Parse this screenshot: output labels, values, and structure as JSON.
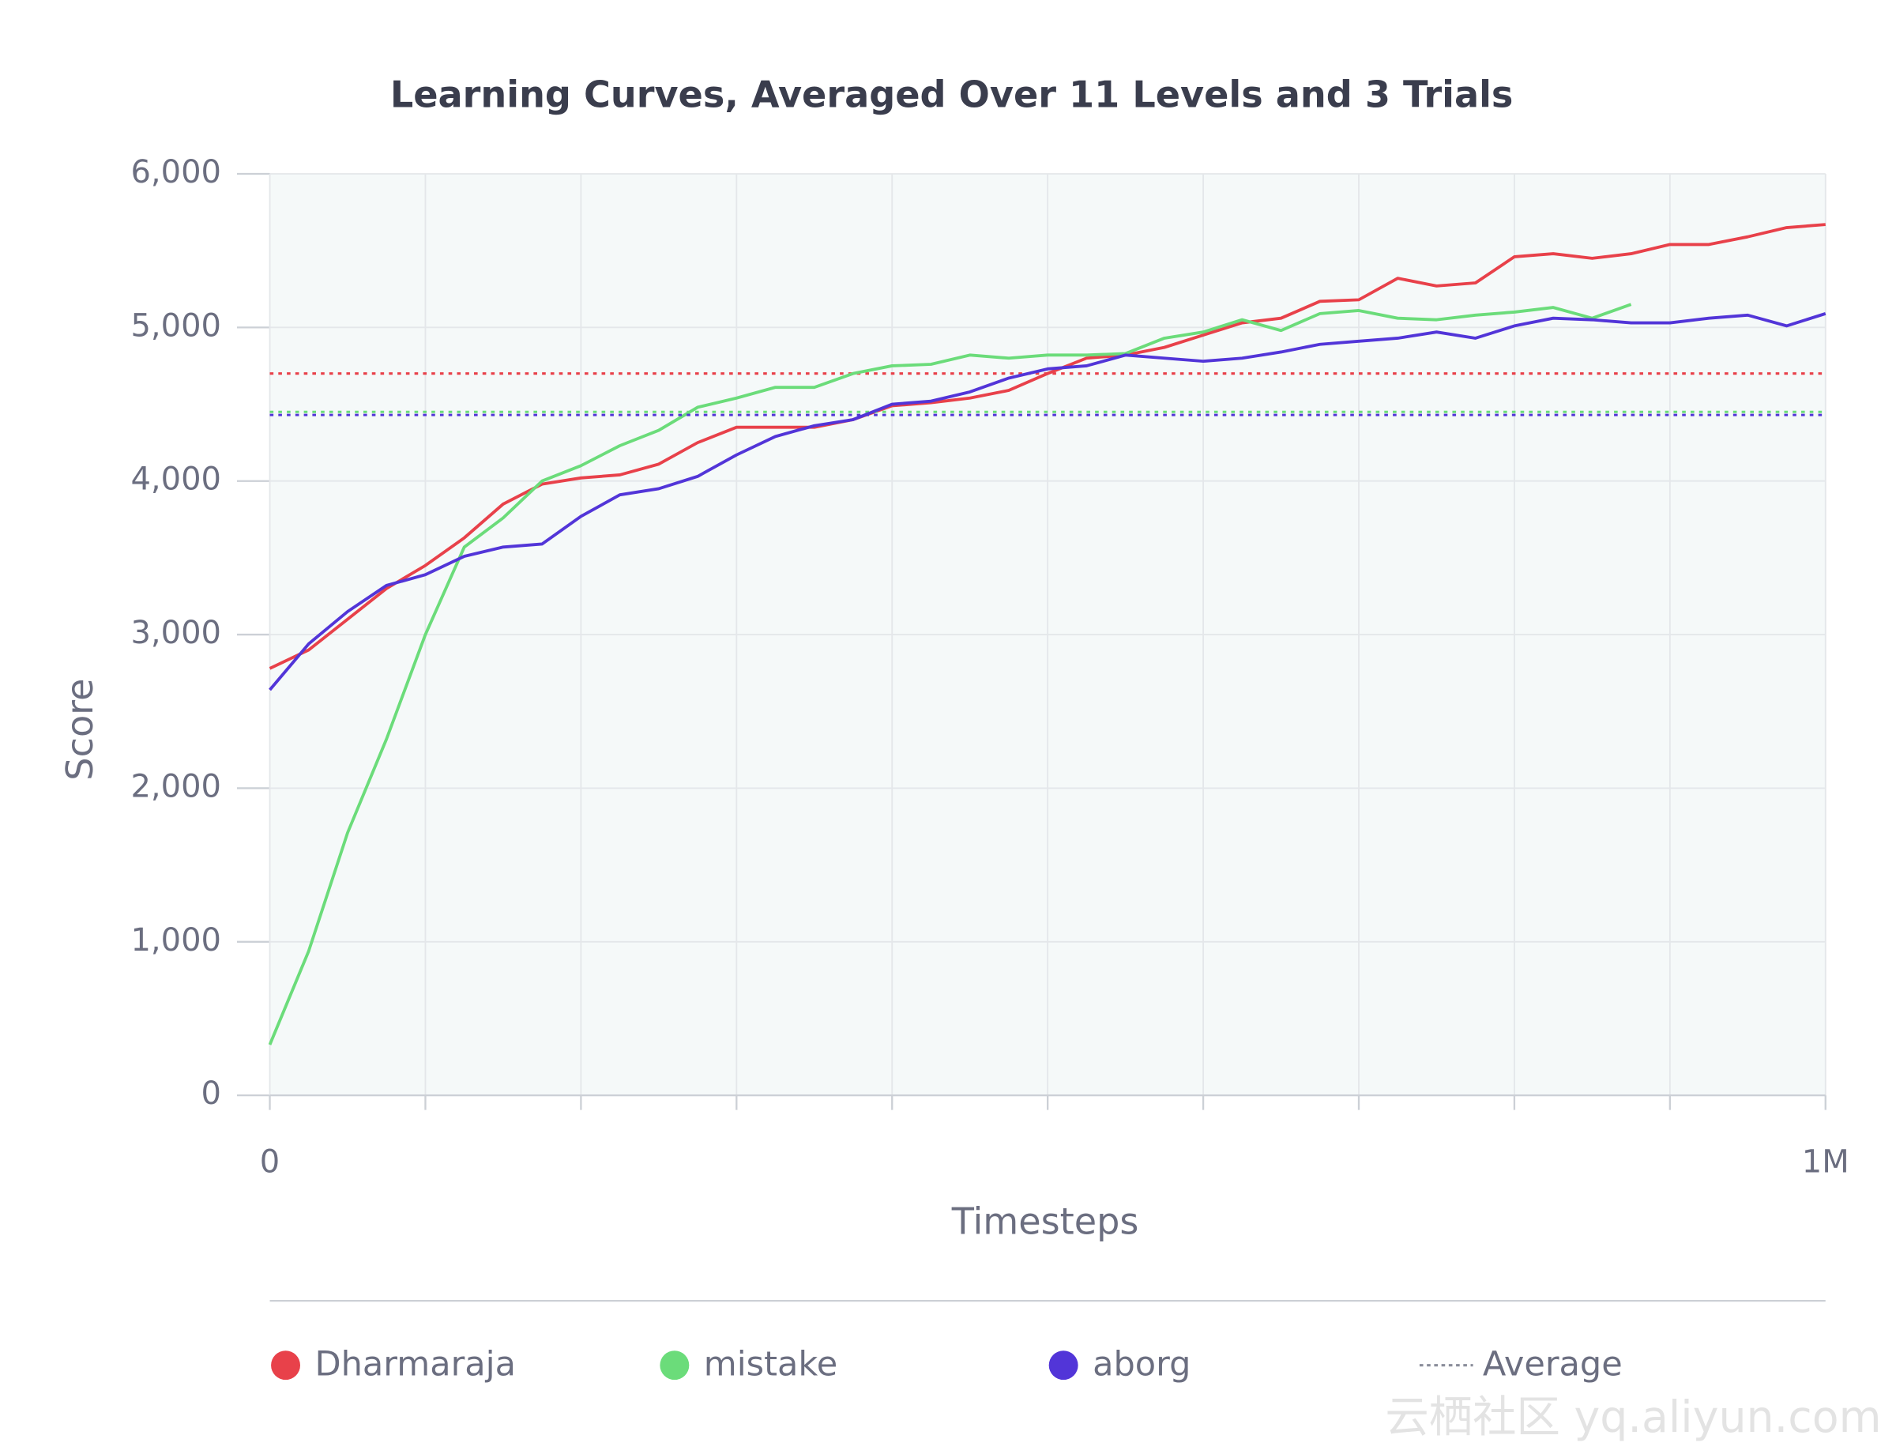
{
  "chart_data": {
    "type": "line",
    "title": "Learning Curves, Averaged Over 11 Levels and 3 Trials",
    "xlabel": "Timesteps",
    "ylabel": "Score",
    "x": [
      0,
      25000,
      50000,
      75000,
      100000,
      125000,
      150000,
      175000,
      200000,
      225000,
      250000,
      275000,
      300000,
      325000,
      350000,
      375000,
      400000,
      425000,
      450000,
      475000,
      500000,
      525000,
      550000,
      575000,
      600000,
      625000,
      650000,
      675000,
      700000,
      725000,
      750000,
      775000,
      800000,
      825000,
      850000,
      875000,
      900000,
      925000,
      950000,
      975000,
      1000000
    ],
    "xlim": [
      0,
      1000000
    ],
    "xticks": [
      0,
      {
        "value": 100000,
        "label": null
      },
      {
        "value": 200000,
        "label": null
      },
      {
        "value": 300000,
        "label": null
      },
      {
        "value": 400000,
        "label": null
      },
      {
        "value": 500000,
        "label": null
      },
      {
        "value": 600000,
        "label": null
      },
      {
        "value": 700000,
        "label": null
      },
      {
        "value": 800000,
        "label": null
      },
      {
        "value": 900000,
        "label": null
      },
      {
        "value": 1000000,
        "label": "1M"
      }
    ],
    "ylim": [
      0,
      6000
    ],
    "yticks": [
      0,
      {
        "value": 1000,
        "label": "1,000"
      },
      {
        "value": 2000,
        "label": "2,000"
      },
      {
        "value": 3000,
        "label": "3,000"
      },
      {
        "value": 4000,
        "label": "4,000"
      },
      {
        "value": 5000,
        "label": "5,000"
      },
      {
        "value": 6000,
        "label": "6,000"
      }
    ],
    "grid": true,
    "average_label": "Average",
    "series": [
      {
        "name": "Dharmaraja",
        "color": "#e8414a",
        "average": 4700,
        "values": [
          2780,
          2900,
          3100,
          3300,
          3450,
          3630,
          3850,
          3980,
          4020,
          4040,
          4110,
          4250,
          4350,
          4350,
          4350,
          4400,
          4490,
          4510,
          4540,
          4590,
          4700,
          4800,
          4820,
          4870,
          4950,
          5030,
          5060,
          5170,
          5180,
          5320,
          5270,
          5290,
          5460,
          5480,
          5450,
          5480,
          5540,
          5540,
          5590,
          5650,
          5670
        ]
      },
      {
        "name": "mistake",
        "color": "#6bdc7a",
        "average": 4450,
        "values": [
          330,
          940,
          1710,
          2320,
          3000,
          3570,
          3760,
          4000,
          4100,
          4230,
          4330,
          4480,
          4540,
          4610,
          4610,
          4700,
          4750,
          4760,
          4820,
          4800,
          4820,
          4820,
          4830,
          4930,
          4970,
          5050,
          4980,
          5090,
          5110,
          5060,
          5050,
          5080,
          5100,
          5130,
          5060,
          5150,
          null,
          null,
          null,
          null,
          null
        ]
      },
      {
        "name": "aborg",
        "color": "#5235d8",
        "average": 4430,
        "values": [
          2640,
          2940,
          3150,
          3320,
          3390,
          3510,
          3570,
          3590,
          3770,
          3910,
          3950,
          4030,
          4170,
          4290,
          4360,
          4400,
          4500,
          4520,
          4580,
          4670,
          4730,
          4750,
          4820,
          4800,
          4780,
          4800,
          4840,
          4890,
          4910,
          4930,
          4970,
          4930,
          5010,
          5060,
          5050,
          5030,
          5030,
          5060,
          5080,
          5010,
          5090
        ]
      }
    ],
    "watermark": "云栖社区 yq.aliyun.com"
  }
}
